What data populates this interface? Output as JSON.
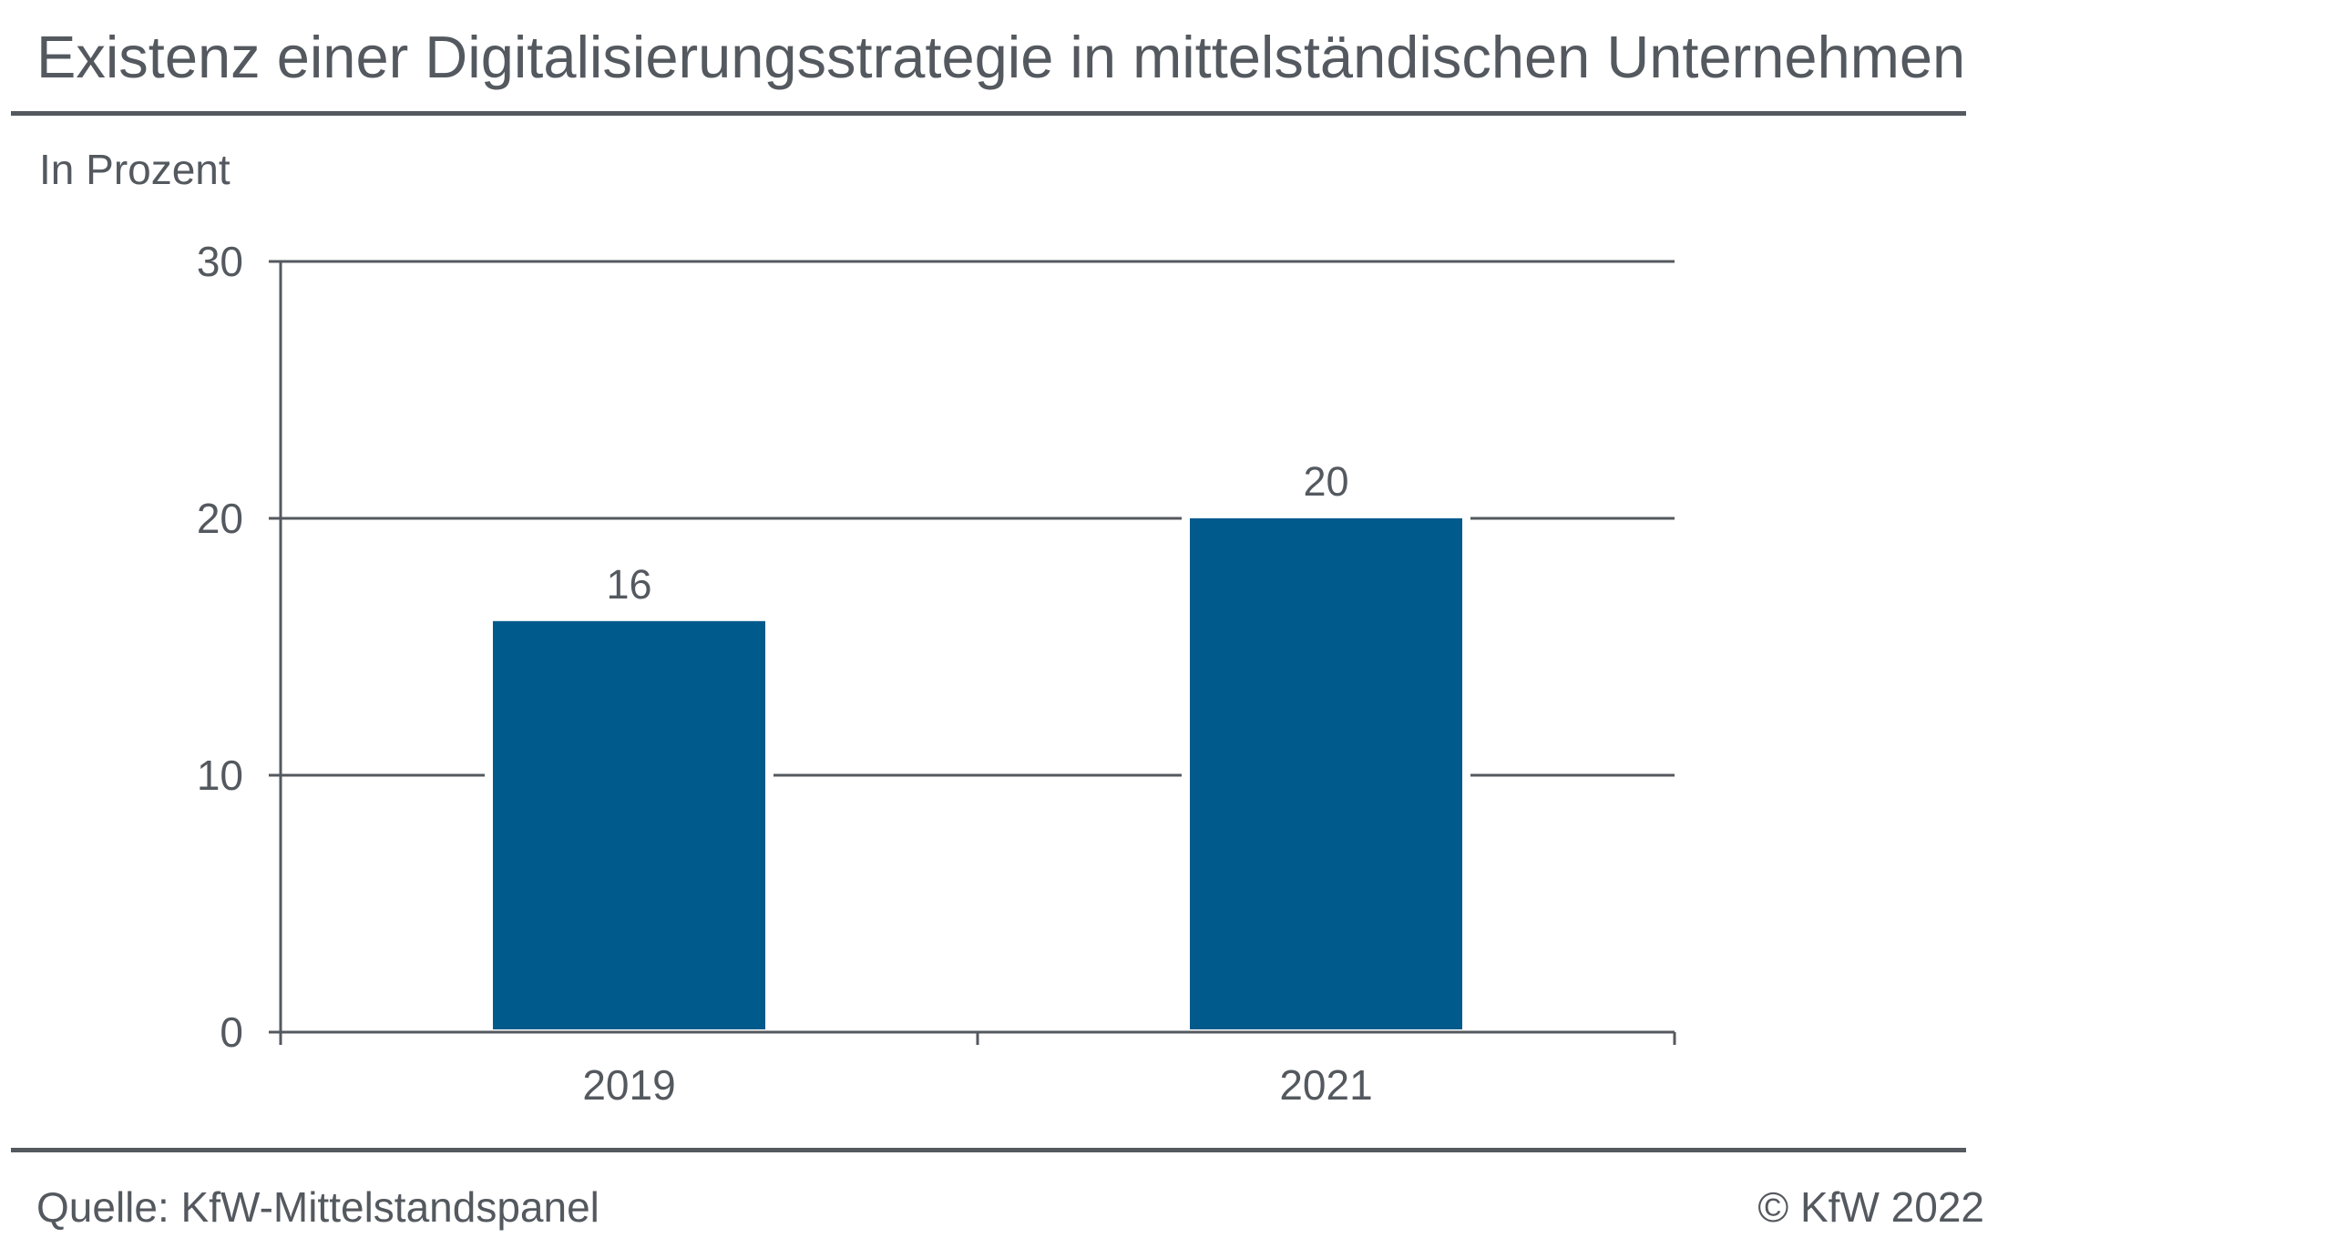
{
  "chart_data": {
    "type": "bar",
    "title": "Existenz einer Digitalisierungsstrategie in mittelständischen Unternehmen",
    "ylabel": "In Prozent",
    "categories": [
      "2019",
      "2021"
    ],
    "values": [
      16,
      20
    ],
    "ylim": [
      0,
      30
    ],
    "yticks": [
      0,
      10,
      20,
      30
    ],
    "grid": true,
    "legend": "none",
    "data_labels": true
  },
  "footer": {
    "source": "Quelle: KfW-Mittelstandspanel",
    "copyright": "© KfW 2022"
  },
  "colors": {
    "bar": "#005a8c",
    "text": "#54595f",
    "rule": "#54595f",
    "background": "#ffffff"
  }
}
